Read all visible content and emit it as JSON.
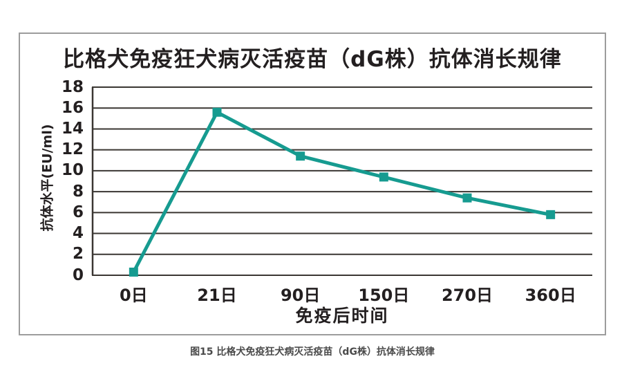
{
  "figure": {
    "caption": "图15 比格犬免疫狂犬病灭活疫苗（dG株）抗体消长规律"
  },
  "chart_data": {
    "type": "line",
    "title": "比格犬免疫狂犬病灭活疫苗（dG株）抗体消长规律",
    "categories": [
      "0日",
      "21日",
      "90日",
      "150日",
      "270日",
      "360日"
    ],
    "values": [
      0.3,
      15.6,
      11.4,
      9.4,
      7.4,
      5.8
    ],
    "xlabel": "免疫后时间",
    "ylabel": "抗体水平(EU/ml)",
    "ylim": [
      0,
      18
    ],
    "ytick_step": 2,
    "grid": "horizontal-only",
    "legend_position": "none",
    "marker": "square",
    "colors": {
      "line": "#169B90",
      "marker": "#169B90",
      "gridline": "#3A3632",
      "axis": "#3A3632",
      "text": "#231F20",
      "frame_border": "#9C9C9C",
      "caption_text": "#4A4A4A"
    }
  }
}
